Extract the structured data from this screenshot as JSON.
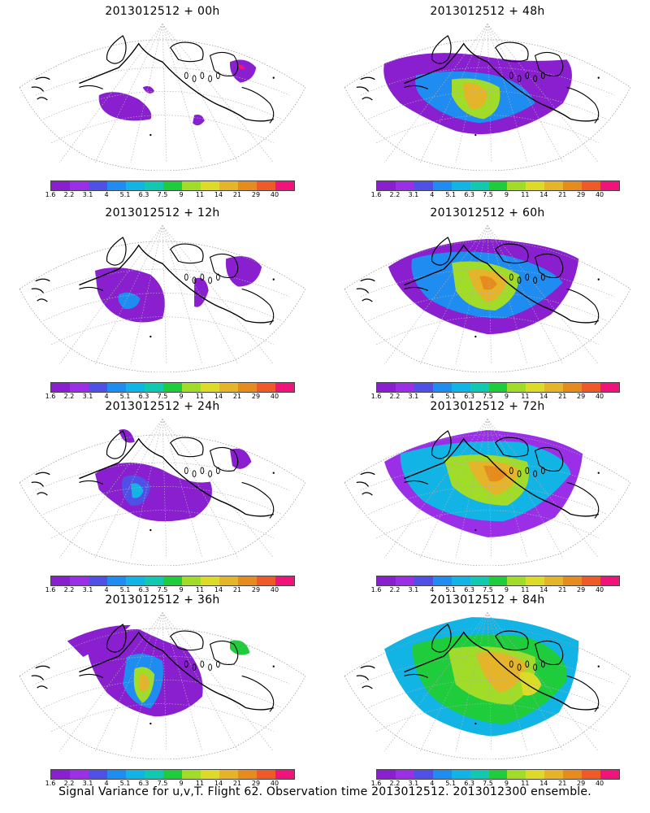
{
  "panels": [
    {
      "title": "2013012512 + 00h",
      "lead_hours": 0
    },
    {
      "title": "2013012512 + 48h",
      "lead_hours": 48
    },
    {
      "title": "2013012512 + 12h",
      "lead_hours": 12
    },
    {
      "title": "2013012512 + 60h",
      "lead_hours": 60
    },
    {
      "title": "2013012512 + 24h",
      "lead_hours": 24
    },
    {
      "title": "2013012512 + 72h",
      "lead_hours": 72
    },
    {
      "title": "2013012512 + 36h",
      "lead_hours": 36
    },
    {
      "title": "2013012512 + 84h",
      "lead_hours": 84
    }
  ],
  "colorbar": {
    "labels": [
      "1.6",
      "2.2",
      "3.1",
      "4",
      "5.1",
      "6.3",
      "7.5",
      "9",
      "11",
      "14",
      "21",
      "29",
      "40"
    ],
    "colors": [
      "#8a1fd0",
      "#9b2fe8",
      "#5050e6",
      "#1e8cf0",
      "#12b4e6",
      "#11c8b0",
      "#1ecc3c",
      "#a0dc28",
      "#dcdc28",
      "#e6b428",
      "#e68c1e",
      "#f05a28",
      "#f0147a"
    ]
  },
  "footer": "Signal Variance for u,v,T. Flight 62. Observation time 2013012512. 2013012300 ensemble."
}
